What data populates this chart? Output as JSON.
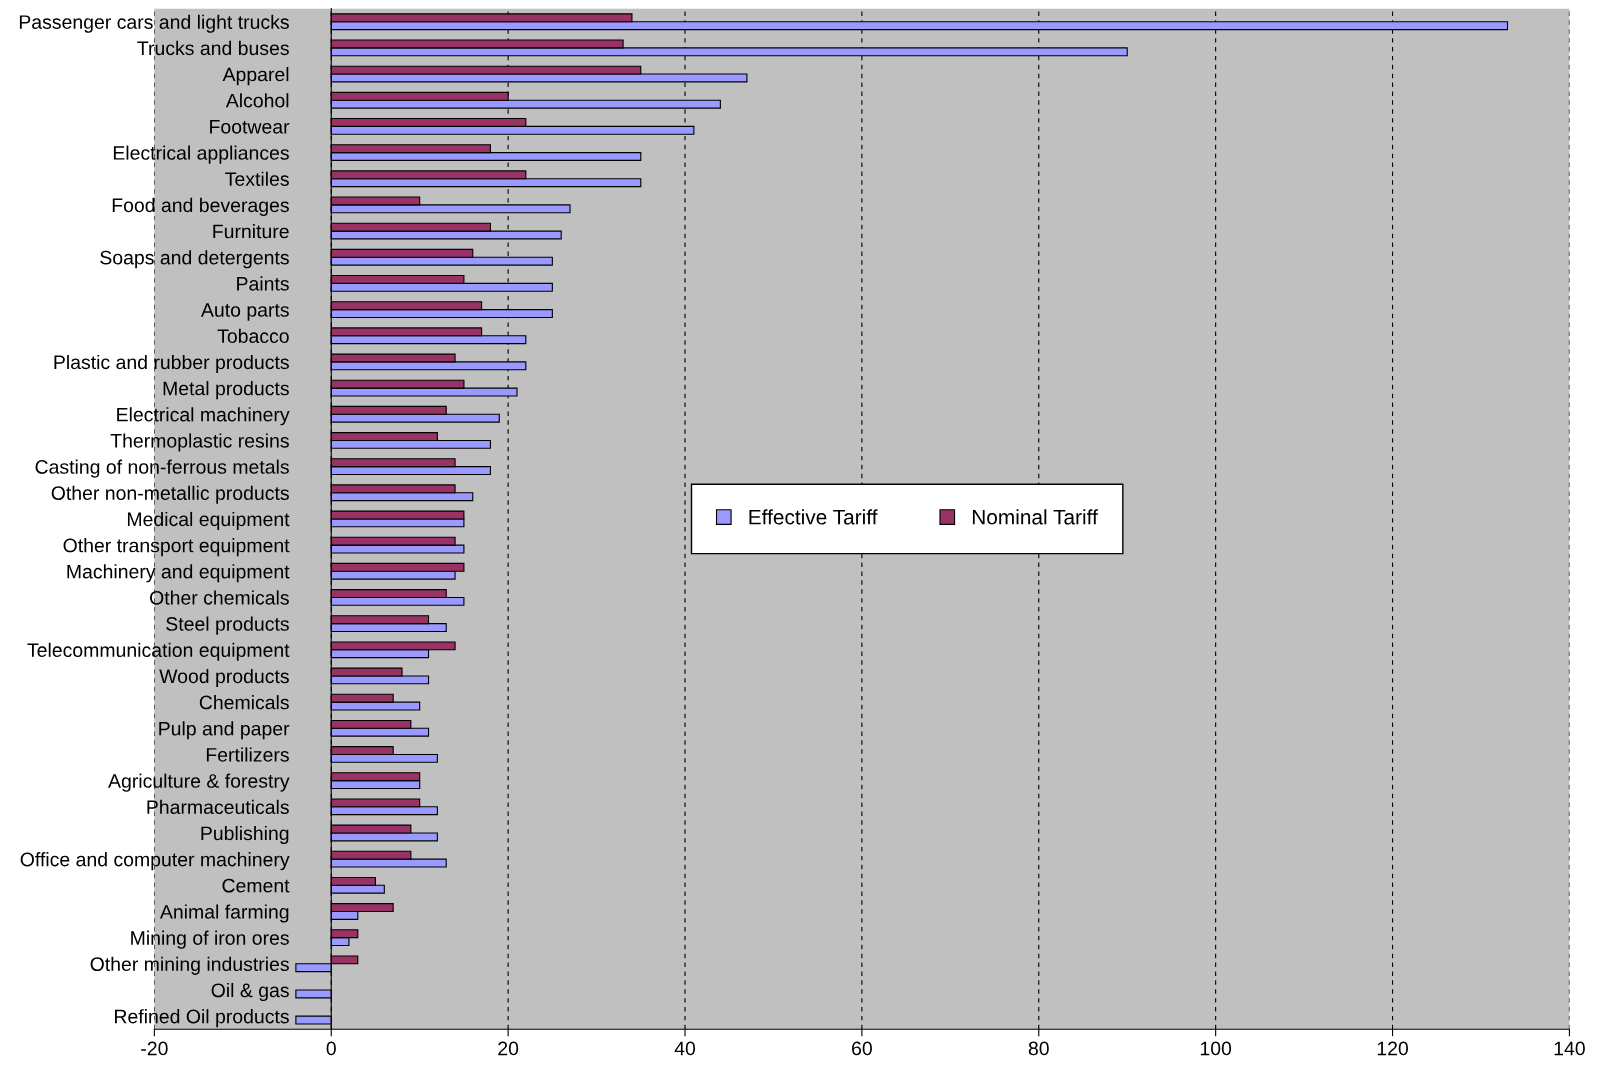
{
  "chart_data": {
    "type": "bar",
    "orientation": "horizontal",
    "categories": [
      "Passenger cars and light trucks",
      "Trucks and buses",
      "Apparel",
      "Alcohol",
      "Footwear",
      "Electrical appliances",
      "Textiles",
      "Food and beverages",
      "Furniture",
      "Soaps and detergents",
      "Paints",
      "Auto parts",
      "Tobacco",
      "Plastic and rubber products",
      "Metal products",
      "Electrical machinery",
      "Thermoplastic resins",
      "Casting of non-ferrous metals",
      "Other non-metallic products",
      "Medical equipment",
      "Other transport equipment",
      "Machinery and equipment",
      "Other chemicals",
      "Steel products",
      "Telecommunication equipment",
      "Wood products",
      "Chemicals",
      "Pulp and paper",
      "Fertilizers",
      "Agriculture & forestry",
      "Pharmaceuticals",
      "Publishing",
      "Office and computer machinery",
      "Cement",
      "Animal farming",
      "Mining of iron ores",
      "Other mining industries",
      "Oil & gas",
      "Refined Oil products"
    ],
    "series": [
      {
        "name": "Effective Tariff",
        "color": "#9999ff",
        "values": [
          133,
          90,
          47,
          44,
          41,
          35,
          35,
          27,
          26,
          25,
          25,
          25,
          22,
          22,
          21,
          19,
          18,
          18,
          16,
          15,
          15,
          14,
          15,
          13,
          11,
          11,
          10,
          11,
          12,
          10,
          12,
          12,
          13,
          6,
          3,
          2,
          -4,
          -4,
          -4
        ]
      },
      {
        "name": "Nominal Tariff",
        "color": "#993366",
        "values": [
          34,
          33,
          35,
          20,
          22,
          18,
          22,
          10,
          18,
          16,
          15,
          17,
          17,
          14,
          15,
          13,
          12,
          14,
          14,
          15,
          14,
          15,
          13,
          11,
          14,
          8,
          7,
          9,
          7,
          10,
          10,
          9,
          9,
          5,
          7,
          3,
          3,
          null,
          null
        ]
      }
    ],
    "xlim": [
      -20,
      140
    ],
    "xticks": [
      -20,
      0,
      20,
      40,
      60,
      80,
      100,
      120,
      140
    ],
    "grid": "x",
    "legend": "center"
  }
}
